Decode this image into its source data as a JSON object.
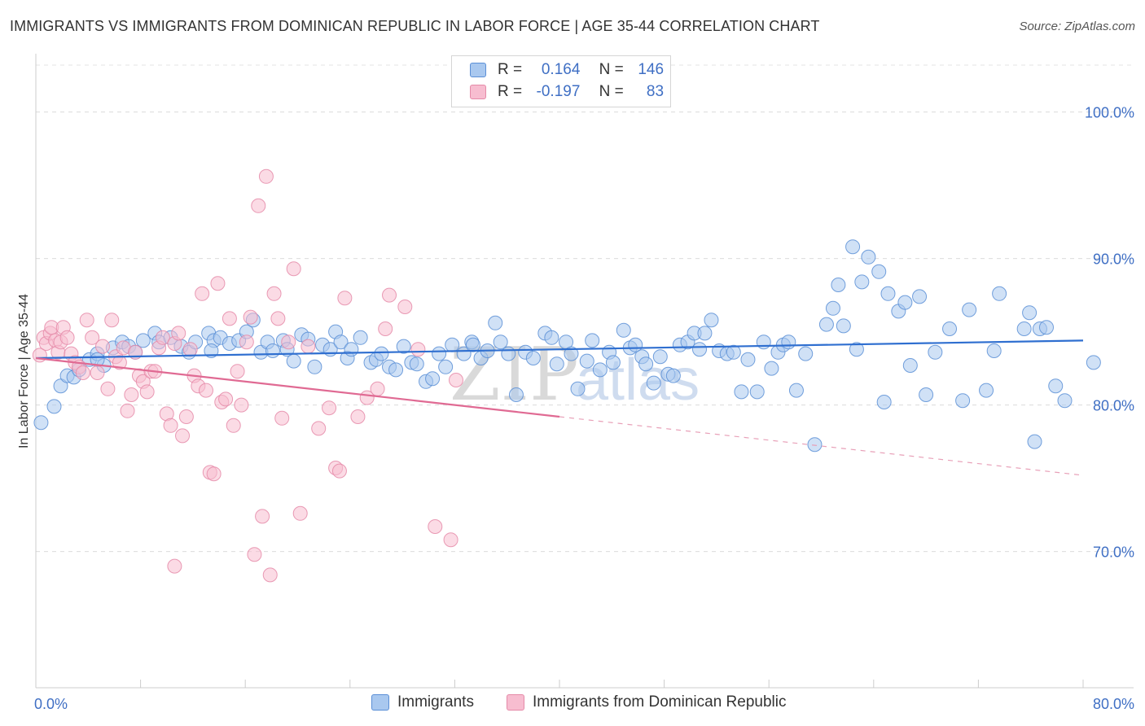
{
  "title": "IMMIGRANTS VS IMMIGRANTS FROM DOMINICAN REPUBLIC IN LABOR FORCE | AGE 35-44 CORRELATION CHART",
  "source": "Source: ZipAtlas.com",
  "watermark": {
    "part1": "ZIP",
    "part2": "atlas"
  },
  "legend_stats": [
    {
      "r_label": "R =",
      "r_value": "0.164",
      "n_label": "N =",
      "n_value": "146",
      "color": "#a9c8ef",
      "stroke": "#5b8fd6"
    },
    {
      "r_label": "R =",
      "r_value": "-0.197",
      "n_label": "N =",
      "n_value": "83",
      "color": "#f7bdd0",
      "stroke": "#e58aa8"
    }
  ],
  "chart_data": {
    "type": "scatter",
    "title": "IMMIGRANTS VS IMMIGRANTS FROM DOMINICAN REPUBLIC IN LABOR FORCE | AGE 35-44 CORRELATION CHART",
    "xlabel": "",
    "ylabel": "In Labor Force | Age 35-44",
    "xlim": [
      0,
      80
    ],
    "ylim": [
      60.7,
      103.2
    ],
    "x_ticks": [
      0,
      80
    ],
    "x_tick_labels": [
      "0.0%",
      "80.0%"
    ],
    "y_ticks": [
      70,
      80,
      90,
      100
    ],
    "y_tick_labels": [
      "70.0%",
      "80.0%",
      "90.0%",
      "100.0%"
    ],
    "grid": true,
    "legend_position": "top-center",
    "series": [
      {
        "name": "Immigrants",
        "color": "#5b8fd6",
        "fill": "#a9c8ef",
        "r": 0.164,
        "n": 146,
        "trend": {
          "x0": 0,
          "y0": 83.2,
          "x1": 80,
          "y1": 84.4
        },
        "points": [
          [
            0.4,
            78.8
          ],
          [
            1.4,
            79.9
          ],
          [
            1.9,
            81.3
          ],
          [
            2.4,
            82.0
          ],
          [
            2.9,
            81.9
          ],
          [
            3.3,
            82.4
          ],
          [
            4.1,
            83.1
          ],
          [
            4.7,
            83.5
          ],
          [
            5.2,
            82.7
          ],
          [
            5.9,
            83.9
          ],
          [
            6.6,
            84.3
          ],
          [
            7.1,
            84.0
          ],
          [
            7.6,
            83.6
          ],
          [
            8.2,
            84.4
          ],
          [
            9.1,
            84.9
          ],
          [
            9.4,
            84.3
          ],
          [
            10.3,
            84.6
          ],
          [
            11.1,
            84.0
          ],
          [
            11.7,
            83.6
          ],
          [
            12.2,
            84.3
          ],
          [
            13.2,
            84.9
          ],
          [
            13.6,
            84.4
          ],
          [
            14.1,
            84.6
          ],
          [
            14.8,
            84.2
          ],
          [
            15.5,
            84.4
          ],
          [
            16.1,
            85.0
          ],
          [
            16.6,
            85.8
          ],
          [
            17.2,
            83.6
          ],
          [
            17.7,
            84.3
          ],
          [
            18.1,
            83.7
          ],
          [
            18.9,
            84.4
          ],
          [
            19.2,
            83.8
          ],
          [
            19.7,
            83.0
          ],
          [
            20.3,
            84.8
          ],
          [
            20.8,
            84.5
          ],
          [
            21.3,
            82.6
          ],
          [
            21.9,
            84.1
          ],
          [
            22.5,
            83.8
          ],
          [
            22.9,
            85.0
          ],
          [
            23.3,
            84.3
          ],
          [
            23.8,
            83.2
          ],
          [
            24.1,
            83.8
          ],
          [
            24.8,
            84.6
          ],
          [
            25.6,
            82.9
          ],
          [
            26.0,
            83.1
          ],
          [
            26.4,
            83.5
          ],
          [
            27.0,
            82.6
          ],
          [
            27.5,
            82.4
          ],
          [
            28.1,
            84.0
          ],
          [
            28.7,
            82.9
          ],
          [
            29.1,
            82.8
          ],
          [
            29.8,
            81.6
          ],
          [
            30.3,
            81.8
          ],
          [
            30.8,
            83.5
          ],
          [
            31.3,
            82.6
          ],
          [
            31.8,
            84.1
          ],
          [
            32.7,
            83.5
          ],
          [
            33.3,
            84.3
          ],
          [
            34.0,
            83.2
          ],
          [
            34.5,
            83.7
          ],
          [
            35.1,
            85.6
          ],
          [
            35.5,
            84.3
          ],
          [
            36.1,
            83.5
          ],
          [
            36.7,
            80.7
          ],
          [
            37.4,
            83.6
          ],
          [
            38.0,
            83.2
          ],
          [
            38.9,
            84.9
          ],
          [
            39.4,
            84.6
          ],
          [
            39.8,
            82.8
          ],
          [
            40.5,
            84.3
          ],
          [
            40.9,
            83.5
          ],
          [
            41.4,
            81.1
          ],
          [
            42.1,
            83.0
          ],
          [
            42.5,
            84.4
          ],
          [
            43.1,
            82.4
          ],
          [
            43.8,
            83.6
          ],
          [
            44.1,
            82.9
          ],
          [
            44.9,
            85.1
          ],
          [
            45.4,
            83.9
          ],
          [
            45.8,
            84.1
          ],
          [
            46.3,
            83.3
          ],
          [
            46.6,
            82.8
          ],
          [
            47.2,
            81.5
          ],
          [
            47.7,
            83.3
          ],
          [
            48.3,
            82.1
          ],
          [
            48.7,
            82.0
          ],
          [
            49.2,
            84.1
          ],
          [
            49.8,
            84.3
          ],
          [
            50.3,
            84.9
          ],
          [
            50.7,
            83.8
          ],
          [
            51.1,
            84.9
          ],
          [
            51.6,
            85.8
          ],
          [
            52.2,
            83.7
          ],
          [
            52.8,
            83.5
          ],
          [
            53.3,
            83.6
          ],
          [
            53.9,
            80.9
          ],
          [
            54.4,
            83.1
          ],
          [
            55.1,
            80.9
          ],
          [
            55.6,
            84.3
          ],
          [
            56.2,
            82.5
          ],
          [
            56.7,
            83.6
          ],
          [
            57.1,
            84.1
          ],
          [
            57.5,
            84.3
          ],
          [
            58.1,
            81.0
          ],
          [
            58.8,
            83.5
          ],
          [
            59.5,
            77.3
          ],
          [
            60.4,
            85.5
          ],
          [
            60.9,
            86.6
          ],
          [
            61.3,
            88.2
          ],
          [
            61.7,
            85.4
          ],
          [
            62.4,
            90.8
          ],
          [
            62.7,
            83.8
          ],
          [
            63.1,
            88.4
          ],
          [
            63.6,
            90.1
          ],
          [
            64.4,
            89.1
          ],
          [
            65.1,
            87.6
          ],
          [
            64.8,
            80.2
          ],
          [
            65.9,
            86.4
          ],
          [
            66.4,
            87.0
          ],
          [
            66.8,
            82.7
          ],
          [
            67.5,
            87.4
          ],
          [
            68.0,
            80.7
          ],
          [
            68.7,
            83.6
          ],
          [
            69.8,
            85.2
          ],
          [
            70.8,
            80.3
          ],
          [
            71.3,
            86.5
          ],
          [
            72.6,
            81.0
          ],
          [
            73.2,
            83.7
          ],
          [
            73.6,
            87.6
          ],
          [
            75.5,
            85.2
          ],
          [
            75.9,
            86.3
          ],
          [
            76.3,
            77.5
          ],
          [
            76.7,
            85.2
          ],
          [
            77.2,
            85.3
          ],
          [
            77.9,
            81.3
          ],
          [
            78.6,
            80.3
          ],
          [
            80.8,
            82.9
          ],
          [
            4.7,
            83.1
          ],
          [
            13.4,
            83.7
          ],
          [
            33.4,
            84.1
          ]
        ]
      },
      {
        "name": "Immigrants from Dominican Republic",
        "color": "#e58aa8",
        "fill": "#f7bdd0",
        "r": -0.197,
        "n": 83,
        "trend": {
          "x0": 0,
          "y0": 83.2,
          "x1": 40,
          "y1": 79.2
        },
        "trend_dashed": {
          "x0": 40,
          "y0": 79.2,
          "x1": 80,
          "y1": 75.2
        },
        "points": [
          [
            0.3,
            83.4
          ],
          [
            0.6,
            84.6
          ],
          [
            0.8,
            84.2
          ],
          [
            1.1,
            84.9
          ],
          [
            1.2,
            85.3
          ],
          [
            1.5,
            84.4
          ],
          [
            1.7,
            83.6
          ],
          [
            1.9,
            84.3
          ],
          [
            2.1,
            85.3
          ],
          [
            2.4,
            84.6
          ],
          [
            2.7,
            83.5
          ],
          [
            3.0,
            82.9
          ],
          [
            3.3,
            82.6
          ],
          [
            3.6,
            82.2
          ],
          [
            3.9,
            85.8
          ],
          [
            4.3,
            84.6
          ],
          [
            4.7,
            82.2
          ],
          [
            5.1,
            84.0
          ],
          [
            5.5,
            81.1
          ],
          [
            5.8,
            85.8
          ],
          [
            6.1,
            83.3
          ],
          [
            6.4,
            82.9
          ],
          [
            6.7,
            83.9
          ],
          [
            7.0,
            79.6
          ],
          [
            7.3,
            80.7
          ],
          [
            7.6,
            83.6
          ],
          [
            7.9,
            82.0
          ],
          [
            8.2,
            81.6
          ],
          [
            8.5,
            80.9
          ],
          [
            8.8,
            82.3
          ],
          [
            9.1,
            82.3
          ],
          [
            9.4,
            83.9
          ],
          [
            9.7,
            84.6
          ],
          [
            10.0,
            79.4
          ],
          [
            10.3,
            78.6
          ],
          [
            10.6,
            84.2
          ],
          [
            10.9,
            84.9
          ],
          [
            11.2,
            77.9
          ],
          [
            11.5,
            79.2
          ],
          [
            11.8,
            83.8
          ],
          [
            12.1,
            82.0
          ],
          [
            12.4,
            81.3
          ],
          [
            12.7,
            87.6
          ],
          [
            13.0,
            81.0
          ],
          [
            13.3,
            75.4
          ],
          [
            13.6,
            75.3
          ],
          [
            13.9,
            88.3
          ],
          [
            14.2,
            80.2
          ],
          [
            14.5,
            80.4
          ],
          [
            14.8,
            85.9
          ],
          [
            15.1,
            78.6
          ],
          [
            15.4,
            82.3
          ],
          [
            15.7,
            80.0
          ],
          [
            16.1,
            84.3
          ],
          [
            16.4,
            86.0
          ],
          [
            16.7,
            69.8
          ],
          [
            17.0,
            93.6
          ],
          [
            17.3,
            72.4
          ],
          [
            17.6,
            95.6
          ],
          [
            17.9,
            68.4
          ],
          [
            18.2,
            87.6
          ],
          [
            18.5,
            85.9
          ],
          [
            18.8,
            79.1
          ],
          [
            19.3,
            84.3
          ],
          [
            19.7,
            89.3
          ],
          [
            20.2,
            72.6
          ],
          [
            20.8,
            84.0
          ],
          [
            21.6,
            78.4
          ],
          [
            22.4,
            79.8
          ],
          [
            22.9,
            75.7
          ],
          [
            23.2,
            75.5
          ],
          [
            23.6,
            87.3
          ],
          [
            24.6,
            79.2
          ],
          [
            25.3,
            80.5
          ],
          [
            26.1,
            81.1
          ],
          [
            26.7,
            85.2
          ],
          [
            27.0,
            87.5
          ],
          [
            28.2,
            86.7
          ],
          [
            29.2,
            83.8
          ],
          [
            30.5,
            71.7
          ],
          [
            31.7,
            70.8
          ],
          [
            32.1,
            81.7
          ],
          [
            10.6,
            69.0
          ]
        ]
      }
    ]
  },
  "bottom_legend": [
    "Immigrants",
    "Immigrants from Dominican Republic"
  ]
}
